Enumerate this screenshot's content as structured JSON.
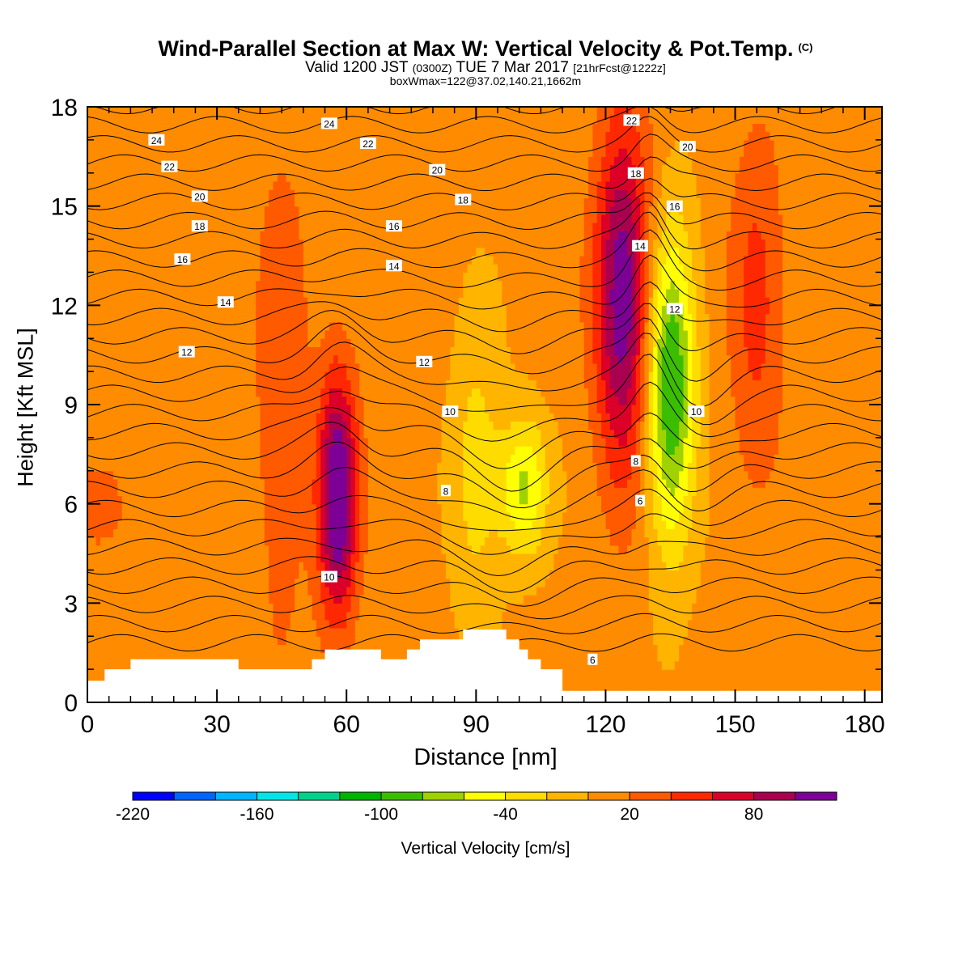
{
  "header": {
    "title": "Wind-Parallel Section at Max W: Vertical Velocity & Pot.Temp.",
    "copyright": "(C)",
    "subtitle_a": "Valid 1200 JST",
    "subtitle_b": "(0300Z)",
    "subtitle_c": "TUE 7 Mar 2017",
    "subtitle_d": "[21hrFcst@1222z]",
    "info": "boxWmax=122@37.02,140.21,1662m"
  },
  "chart_data": {
    "type": "heatmap",
    "xlabel": "Distance [nm]",
    "ylabel": "Height [Kft MSL]",
    "xlim": [
      0,
      184
    ],
    "ylim": [
      0,
      18
    ],
    "x_ticks": [
      0,
      30,
      60,
      90,
      120,
      150,
      180
    ],
    "y_ticks": [
      0,
      3,
      6,
      9,
      12,
      15,
      18
    ],
    "colorbar": {
      "title": "Vertical Velocity [cm/s]",
      "tick_labels": [
        "-220",
        "-160",
        "-100",
        "-40",
        "20",
        "80"
      ],
      "tick_values": [
        -220,
        -160,
        -100,
        -40,
        20,
        80
      ],
      "levels": [
        -220,
        -200,
        -180,
        -160,
        -140,
        -120,
        -100,
        -80,
        -60,
        -40,
        -20,
        0,
        20,
        40,
        60,
        80,
        100,
        120
      ],
      "colors": [
        "#0000ff",
        "#0064ff",
        "#00b4ff",
        "#00e6e6",
        "#00d28c",
        "#00b400",
        "#3cbe00",
        "#a0d200",
        "#ffff00",
        "#ffdc00",
        "#ffb400",
        "#ff8c00",
        "#ff5a00",
        "#ff2800",
        "#dc0028",
        "#aa0050",
        "#7d0096"
      ]
    },
    "updraft_cores": [
      {
        "x": 58,
        "z_bottom": 2.5,
        "z_top": 10.0,
        "w_max": 122
      },
      {
        "x": 124,
        "z_bottom": 6.5,
        "z_top": 18.0,
        "w_max": 110
      },
      {
        "x": 155,
        "z_bottom": 6.0,
        "z_top": 18.0,
        "w_max": 40
      },
      {
        "x": 45,
        "z_bottom": 0.5,
        "z_top": 18.0,
        "w_max": 30
      },
      {
        "x": 3,
        "z_bottom": 5.0,
        "z_top": 7.0,
        "w_max": 30
      }
    ],
    "downdraft_cores": [
      {
        "x": 135,
        "z_bottom": 4.5,
        "z_top": 14.5,
        "w_min": -110
      },
      {
        "x": 101,
        "z_bottom": 4.5,
        "z_top": 8.5,
        "w_min": -70
      },
      {
        "x": 90,
        "z_bottom": 2.0,
        "z_top": 12.0,
        "w_min": -35
      }
    ],
    "terrain": [
      [
        0,
        0.65
      ],
      [
        4,
        0.65
      ],
      [
        4,
        1.0
      ],
      [
        10,
        1.0
      ],
      [
        10,
        1.3
      ],
      [
        35,
        1.3
      ],
      [
        35,
        1.0
      ],
      [
        52,
        1.0
      ],
      [
        52,
        1.3
      ],
      [
        55,
        1.3
      ],
      [
        55,
        1.6
      ],
      [
        68,
        1.6
      ],
      [
        68,
        1.3
      ],
      [
        74,
        1.3
      ],
      [
        74,
        1.6
      ],
      [
        77,
        1.6
      ],
      [
        77,
        1.9
      ],
      [
        87,
        1.9
      ],
      [
        87,
        2.2
      ],
      [
        97,
        2.2
      ],
      [
        97,
        1.9
      ],
      [
        100,
        1.9
      ],
      [
        100,
        1.6
      ],
      [
        102,
        1.6
      ],
      [
        102,
        1.3
      ],
      [
        105,
        1.3
      ],
      [
        105,
        1.0
      ],
      [
        110,
        1.0
      ],
      [
        110,
        0.35
      ],
      [
        184,
        0.35
      ]
    ],
    "theta_contours": {
      "unit_label": "Pot.Temp.",
      "labels": [
        {
          "text": "24",
          "x": 16,
          "z": 17.0
        },
        {
          "text": "22",
          "x": 19,
          "z": 16.2
        },
        {
          "text": "20",
          "x": 26,
          "z": 15.3
        },
        {
          "text": "18",
          "x": 26,
          "z": 14.4
        },
        {
          "text": "16",
          "x": 22,
          "z": 13.4
        },
        {
          "text": "14",
          "x": 32,
          "z": 12.1
        },
        {
          "text": "12",
          "x": 23,
          "z": 10.6
        },
        {
          "text": "24",
          "x": 56,
          "z": 17.5
        },
        {
          "text": "22",
          "x": 65,
          "z": 16.9
        },
        {
          "text": "20",
          "x": 81,
          "z": 16.1
        },
        {
          "text": "18",
          "x": 87,
          "z": 15.2
        },
        {
          "text": "16",
          "x": 71,
          "z": 14.4
        },
        {
          "text": "14",
          "x": 71,
          "z": 13.2
        },
        {
          "text": "12",
          "x": 78,
          "z": 10.3
        },
        {
          "text": "10",
          "x": 84,
          "z": 8.8
        },
        {
          "text": "8",
          "x": 83,
          "z": 6.4
        },
        {
          "text": "10",
          "x": 56,
          "z": 3.8
        },
        {
          "text": "22",
          "x": 126,
          "z": 17.6
        },
        {
          "text": "20",
          "x": 139,
          "z": 16.8
        },
        {
          "text": "18",
          "x": 127,
          "z": 16.0
        },
        {
          "text": "16",
          "x": 136,
          "z": 15.0
        },
        {
          "text": "14",
          "x": 128,
          "z": 13.8
        },
        {
          "text": "12",
          "x": 136,
          "z": 11.9
        },
        {
          "text": "10",
          "x": 141,
          "z": 8.8
        },
        {
          "text": "8",
          "x": 127,
          "z": 7.3
        },
        {
          "text": "6",
          "x": 128,
          "z": 6.1
        },
        {
          "text": "6",
          "x": 117,
          "z": 1.3
        }
      ]
    }
  }
}
